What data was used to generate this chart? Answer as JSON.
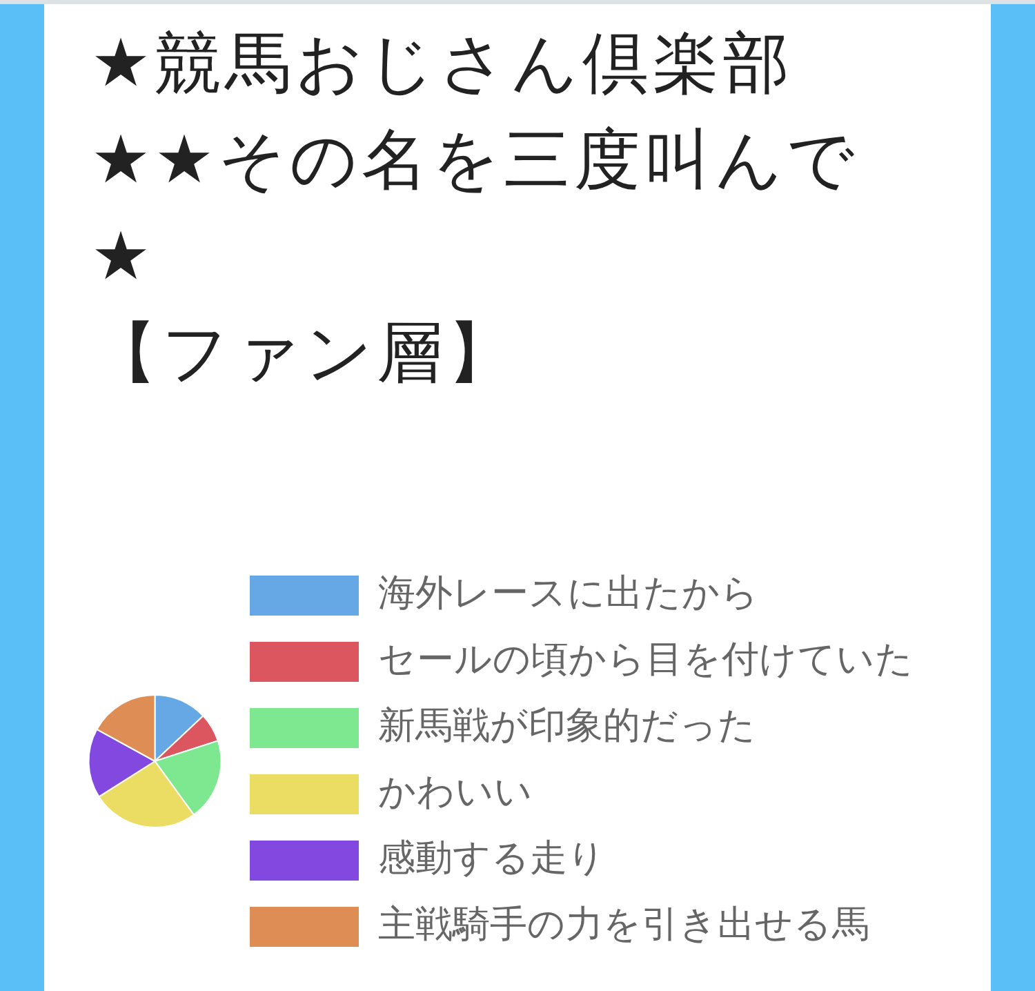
{
  "chart_data": {
    "type": "pie",
    "title": "★競馬おじさん倶楽部\n★★その名を三度叫んで\n★\n【ファン層】",
    "categories": [
      "海外レースに出たから",
      "セールの頃から目を付けていた",
      "新馬戦が印象的だった",
      "かわいい",
      "感動する走り",
      "主戦騎手の力を引き出せる馬"
    ],
    "values": [
      13,
      7,
      20,
      26,
      17,
      17
    ],
    "colors": [
      "#66a8e6",
      "#dc5660",
      "#7de88f",
      "#ebdc64",
      "#8248e0",
      "#de8d55"
    ],
    "legend": "right"
  }
}
